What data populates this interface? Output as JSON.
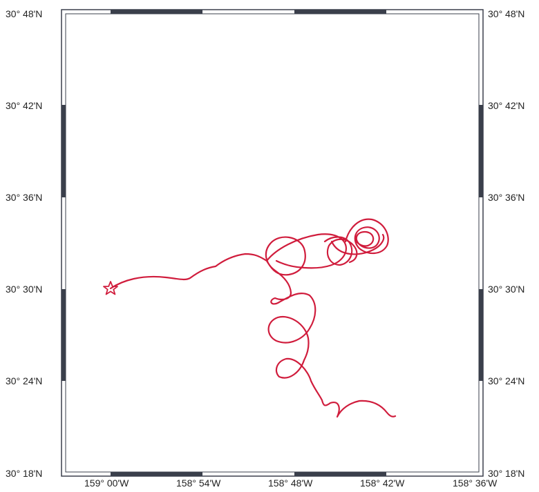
{
  "map": {
    "frame_color": "#3a3f4b",
    "track_color": "#d01c3c",
    "lat_labels": [
      "30° 48'N",
      "30° 42'N",
      "30° 36'N",
      "30° 30'N",
      "30° 24'N",
      "30° 18'N"
    ],
    "lon_labels": [
      "159° 00'W",
      "158° 54'W",
      "158° 48'W",
      "158° 42'W",
      "158° 36'W"
    ],
    "start_marker": "star"
  }
}
